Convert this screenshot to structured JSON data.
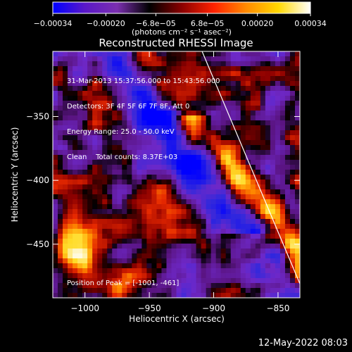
{
  "chart_data": {
    "type": "heatmap",
    "title": "Reconstructed RHESSI Image",
    "xlabel": "Heliocentric X (arcsec)",
    "ylabel": "Heliocentric Y (arcsec)",
    "xlim": [
      -1025,
      -833
    ],
    "ylim": [
      -492,
      -299
    ],
    "x_ticks": [
      "−1000",
      "−950",
      "−900",
      "−850"
    ],
    "x_tick_values": [
      -1000,
      -950,
      -900,
      -850
    ],
    "y_ticks": [
      "−350",
      "−400",
      "−450"
    ],
    "y_tick_values": [
      -350,
      -400,
      -450
    ],
    "colorbar": {
      "min": -0.00034,
      "max": 0.00034,
      "tick_labels": [
        "−0.00034",
        "−0.00020",
        "−6.8e−05",
        "6.8e−05",
        "0.00020",
        "0.00034"
      ],
      "tick_values": [
        -0.00034,
        -0.0002,
        -6.8e-05,
        6.8e-05,
        0.0002,
        0.00034
      ],
      "unit_label": "(photons cm⁻² s⁻¹ asec⁻²)",
      "colors": [
        "#0000ff",
        "#5a18c8",
        "#7b2fb0",
        "#000000",
        "#8a0000",
        "#ff2200",
        "#ff8a00",
        "#ffd800",
        "#ffffff"
      ]
    },
    "annotations": [
      "31-Mar-2013 15:37:56.000 to 15:43:56.000",
      "Detectors: 3F 4F 5F 6F 7F 8F, Att 0",
      "Energy Range: 25.0 - 50.0 keV",
      "Clean    Total counts: 8.37E+03"
    ],
    "peak_label": "Position of Peak = [-1001, -461]",
    "limb_line": [
      [
        -909,
        -299
      ],
      [
        -833,
        -481
      ]
    ],
    "grid": false
  },
  "footer": {
    "timestamp": "12-May-2022 08:03"
  }
}
